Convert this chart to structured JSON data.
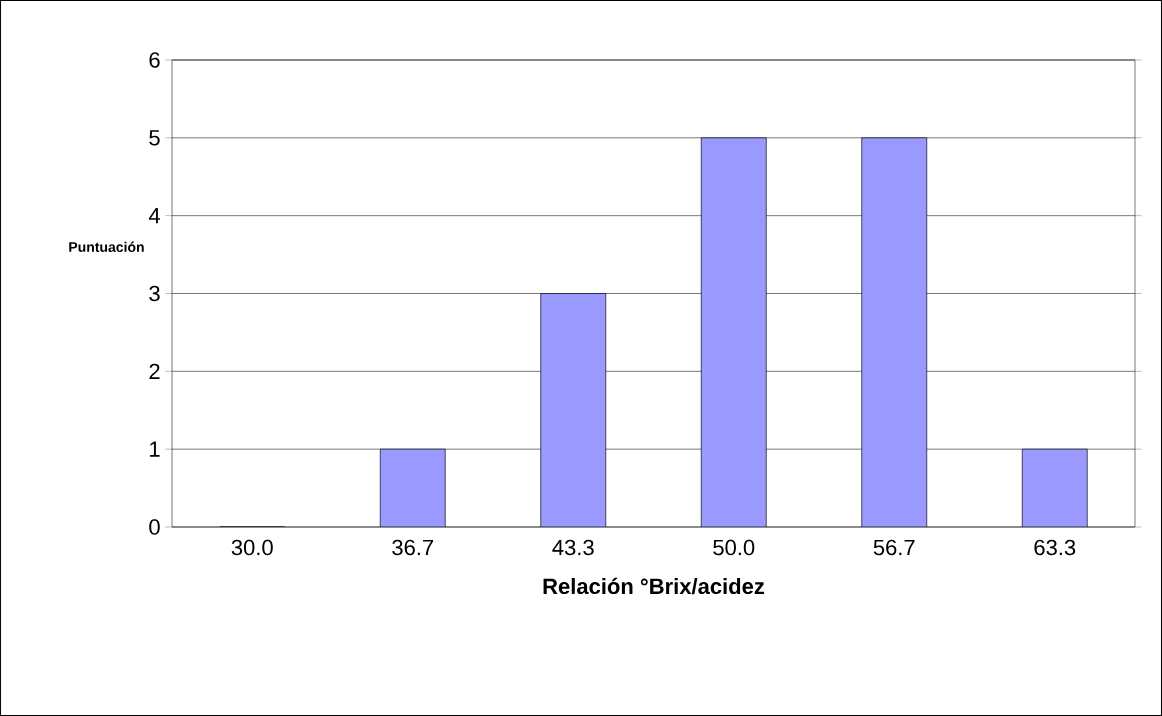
{
  "chart_data": {
    "type": "bar",
    "xlabel": "Relación °Brix/acidez",
    "ylabel": "Puntuación",
    "categories": [
      "30.0",
      "36.7",
      "43.3",
      "50.0",
      "56.7",
      "63.3"
    ],
    "values": [
      0,
      1,
      3,
      5,
      5,
      1
    ],
    "color": "#9999ff",
    "ylim": [
      0,
      6
    ],
    "yticks": [
      0,
      1,
      2,
      3,
      4,
      5,
      6
    ],
    "grid": "y"
  }
}
